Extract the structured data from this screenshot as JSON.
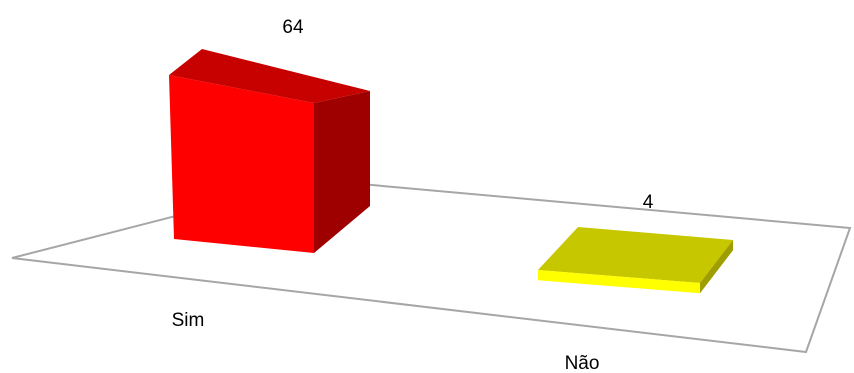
{
  "chart_data": {
    "type": "bar",
    "title": "",
    "xlabel": "",
    "ylabel": "",
    "categories": [
      "Sim",
      "Não"
    ],
    "values": [
      64,
      4
    ],
    "colors": [
      "#ff0000",
      "#ffff00"
    ],
    "data_labels": [
      "64",
      "4"
    ],
    "ylim": [
      0,
      64
    ],
    "grid": false,
    "legend": "none",
    "style": "3d-perspective"
  }
}
